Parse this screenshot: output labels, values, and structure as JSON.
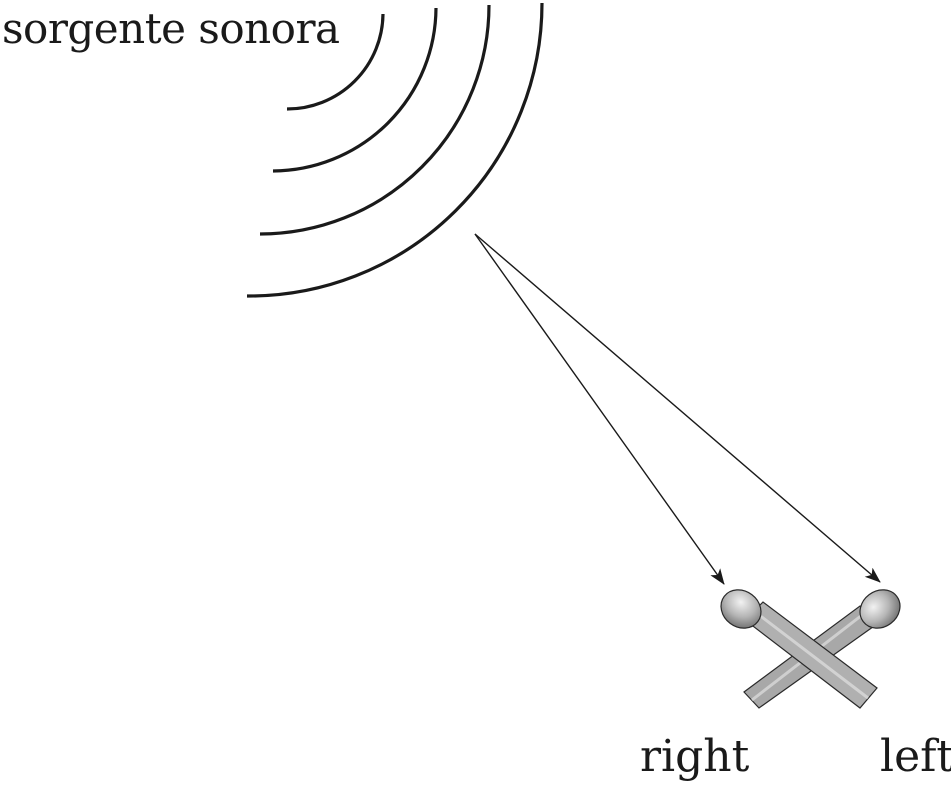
{
  "labels": {
    "source": "sorgente sonora",
    "right_mic": "right",
    "left_mic": "left"
  },
  "colors": {
    "stroke": "#1a1a1a",
    "mic_body": "#a9a9a9",
    "mic_head": "#9a9a9a",
    "background": "#ffffff"
  },
  "icons": {
    "source": "sound-wave-arcs-icon",
    "microphones": "crossed-microphones-icon"
  }
}
